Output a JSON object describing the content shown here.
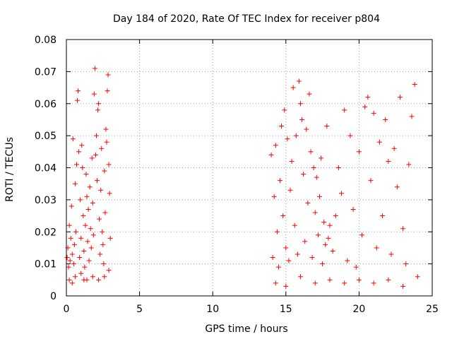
{
  "chart_data": {
    "type": "scatter",
    "title": "Day 184 of 2020, Rate Of TEC Index for receiver p804",
    "xlabel": "GPS time / hours",
    "ylabel": "ROTI / TECUs",
    "xlim": [
      0,
      25
    ],
    "ylim": [
      0,
      0.08
    ],
    "xticks": [
      0,
      5,
      10,
      15,
      20,
      25
    ],
    "xtick_labels": [
      "0",
      "5",
      "10",
      "15",
      "20",
      "25"
    ],
    "yticks": [
      0,
      0.01,
      0.02,
      0.03,
      0.04,
      0.05,
      0.06,
      0.07,
      0.08
    ],
    "ytick_labels": [
      "0",
      "0.01",
      "0.02",
      "0.03",
      "0.04",
      "0.05",
      "0.06",
      "0.07",
      "0.08"
    ],
    "grid": true,
    "marker": "+",
    "color": "#ff0000",
    "series": [
      {
        "name": "ROTI",
        "points": [
          [
            0.05,
            0.012
          ],
          [
            0.1,
            0.015
          ],
          [
            0.15,
            0.009
          ],
          [
            0.2,
            0.022
          ],
          [
            0.25,
            0.011
          ],
          [
            0.3,
            0.018
          ],
          [
            0.35,
            0.028
          ],
          [
            0.4,
            0.013
          ],
          [
            0.45,
            0.049
          ],
          [
            0.5,
            0.01
          ],
          [
            0.55,
            0.016
          ],
          [
            0.6,
            0.035
          ],
          [
            0.65,
            0.02
          ],
          [
            0.7,
            0.041
          ],
          [
            0.75,
            0.061
          ],
          [
            0.8,
            0.064
          ],
          [
            0.85,
            0.045
          ],
          [
            0.9,
            0.012
          ],
          [
            0.95,
            0.03
          ],
          [
            1.0,
            0.018
          ],
          [
            1.05,
            0.047
          ],
          [
            1.1,
            0.04
          ],
          [
            1.15,
            0.025
          ],
          [
            1.2,
            0.014
          ],
          [
            1.25,
            0.009
          ],
          [
            1.3,
            0.022
          ],
          [
            1.35,
            0.038
          ],
          [
            1.4,
            0.031
          ],
          [
            1.45,
            0.017
          ],
          [
            1.5,
            0.027
          ],
          [
            1.55,
            0.011
          ],
          [
            1.6,
            0.034
          ],
          [
            1.65,
            0.021
          ],
          [
            1.7,
            0.015
          ],
          [
            1.75,
            0.043
          ],
          [
            1.8,
            0.029
          ],
          [
            1.85,
            0.019
          ],
          [
            1.9,
            0.063
          ],
          [
            1.95,
            0.071
          ],
          [
            2.0,
            0.044
          ],
          [
            2.05,
            0.05
          ],
          [
            2.1,
            0.036
          ],
          [
            2.15,
            0.058
          ],
          [
            2.2,
            0.06
          ],
          [
            2.25,
            0.024
          ],
          [
            2.3,
            0.013
          ],
          [
            2.35,
            0.033
          ],
          [
            2.4,
            0.046
          ],
          [
            2.45,
            0.02
          ],
          [
            2.5,
            0.016
          ],
          [
            2.55,
            0.01
          ],
          [
            2.6,
            0.039
          ],
          [
            2.65,
            0.026
          ],
          [
            2.7,
            0.052
          ],
          [
            2.75,
            0.048
          ],
          [
            2.8,
            0.064
          ],
          [
            2.85,
            0.069
          ],
          [
            2.9,
            0.041
          ],
          [
            2.95,
            0.032
          ],
          [
            3.0,
            0.018
          ],
          [
            0.2,
            0.005
          ],
          [
            0.6,
            0.006
          ],
          [
            1.0,
            0.007
          ],
          [
            1.4,
            0.005
          ],
          [
            1.8,
            0.006
          ],
          [
            2.2,
            0.005
          ],
          [
            2.6,
            0.006
          ],
          [
            2.9,
            0.008
          ],
          [
            0.4,
            0.004
          ],
          [
            1.2,
            0.005
          ],
          [
            14.0,
            0.044
          ],
          [
            14.1,
            0.012
          ],
          [
            14.2,
            0.031
          ],
          [
            14.3,
            0.047
          ],
          [
            14.4,
            0.02
          ],
          [
            14.5,
            0.009
          ],
          [
            14.6,
            0.036
          ],
          [
            14.7,
            0.053
          ],
          [
            14.8,
            0.025
          ],
          [
            14.9,
            0.058
          ],
          [
            15.0,
            0.015
          ],
          [
            15.1,
            0.049
          ],
          [
            15.2,
            0.011
          ],
          [
            15.3,
            0.033
          ],
          [
            15.4,
            0.042
          ],
          [
            15.5,
            0.065
          ],
          [
            15.6,
            0.022
          ],
          [
            15.7,
            0.05
          ],
          [
            15.8,
            0.013
          ],
          [
            15.9,
            0.067
          ],
          [
            16.0,
            0.06
          ],
          [
            16.1,
            0.055
          ],
          [
            16.2,
            0.038
          ],
          [
            16.3,
            0.017
          ],
          [
            16.4,
            0.052
          ],
          [
            16.5,
            0.029
          ],
          [
            16.6,
            0.063
          ],
          [
            16.7,
            0.045
          ],
          [
            16.8,
            0.012
          ],
          [
            16.9,
            0.04
          ],
          [
            17.0,
            0.026
          ],
          [
            17.1,
            0.037
          ],
          [
            17.2,
            0.019
          ],
          [
            17.3,
            0.031
          ],
          [
            17.4,
            0.043
          ],
          [
            17.5,
            0.01
          ],
          [
            17.6,
            0.023
          ],
          [
            17.7,
            0.016
          ],
          [
            17.8,
            0.053
          ],
          [
            17.9,
            0.018
          ],
          [
            18.0,
            0.022
          ],
          [
            18.2,
            0.014
          ],
          [
            18.4,
            0.025
          ],
          [
            18.6,
            0.04
          ],
          [
            18.8,
            0.032
          ],
          [
            19.0,
            0.058
          ],
          [
            19.2,
            0.011
          ],
          [
            19.4,
            0.05
          ],
          [
            19.6,
            0.027
          ],
          [
            19.8,
            0.009
          ],
          [
            20.0,
            0.045
          ],
          [
            20.2,
            0.019
          ],
          [
            20.4,
            0.059
          ],
          [
            20.6,
            0.062
          ],
          [
            20.8,
            0.036
          ],
          [
            21.0,
            0.057
          ],
          [
            21.2,
            0.015
          ],
          [
            21.4,
            0.048
          ],
          [
            21.6,
            0.025
          ],
          [
            21.8,
            0.055
          ],
          [
            22.0,
            0.042
          ],
          [
            22.2,
            0.013
          ],
          [
            22.4,
            0.046
          ],
          [
            22.6,
            0.034
          ],
          [
            22.8,
            0.062
          ],
          [
            23.0,
            0.021
          ],
          [
            23.2,
            0.01
          ],
          [
            23.4,
            0.041
          ],
          [
            23.6,
            0.056
          ],
          [
            23.8,
            0.066
          ],
          [
            14.3,
            0.004
          ],
          [
            15.0,
            0.003
          ],
          [
            16.0,
            0.006
          ],
          [
            17.0,
            0.004
          ],
          [
            18.0,
            0.005
          ],
          [
            19.0,
            0.004
          ],
          [
            20.0,
            0.005
          ],
          [
            21.0,
            0.004
          ],
          [
            22.0,
            0.005
          ],
          [
            23.0,
            0.003
          ],
          [
            24.0,
            0.006
          ]
        ]
      }
    ]
  }
}
